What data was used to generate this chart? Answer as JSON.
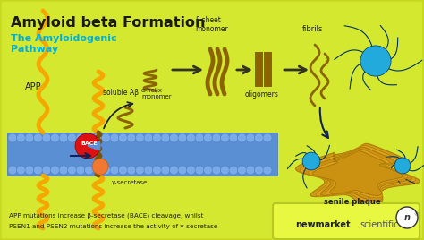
{
  "title": "Amyloid beta Formation",
  "subtitle": "The Amyloidogenic\nPathway",
  "bg_color": "#d4e830",
  "border_color": "#c8d820",
  "title_color": "#1a1a1a",
  "subtitle_color": "#00b0d8",
  "bottom_text_line1": "APP mutations increase β-secretase (BACE) cleavage, whilst",
  "bottom_text_line2": "PSEN1 and PSEN2 mutations increase the activity of γ-secretase",
  "label_app": "APP",
  "label_bace": "BACE",
  "label_gamma": "γ-secretase",
  "label_soluble": "soluble Aβ",
  "label_alpha": "α-helix\nmonomer",
  "label_beta": "β-sheet\nmonomer",
  "label_oligomers": "oligomers",
  "label_fibrils": "fibrils",
  "label_senile": "senile plaque",
  "membrane_color": "#5b8fd4",
  "membrane_bubble_color": "#7aaae8",
  "app_color": "#f5a800",
  "bace_color": "#dd1111",
  "gamma_color": "#f07830",
  "monomer_color": "#8B6400",
  "arrow_color": "#222222",
  "dark_arrow_color": "#112255",
  "neuron_color": "#22aadd",
  "neuron_dark": "#003366",
  "senile_color": "#c8900a",
  "box_color": "#e8f840",
  "box_border_color": "#b8c820"
}
